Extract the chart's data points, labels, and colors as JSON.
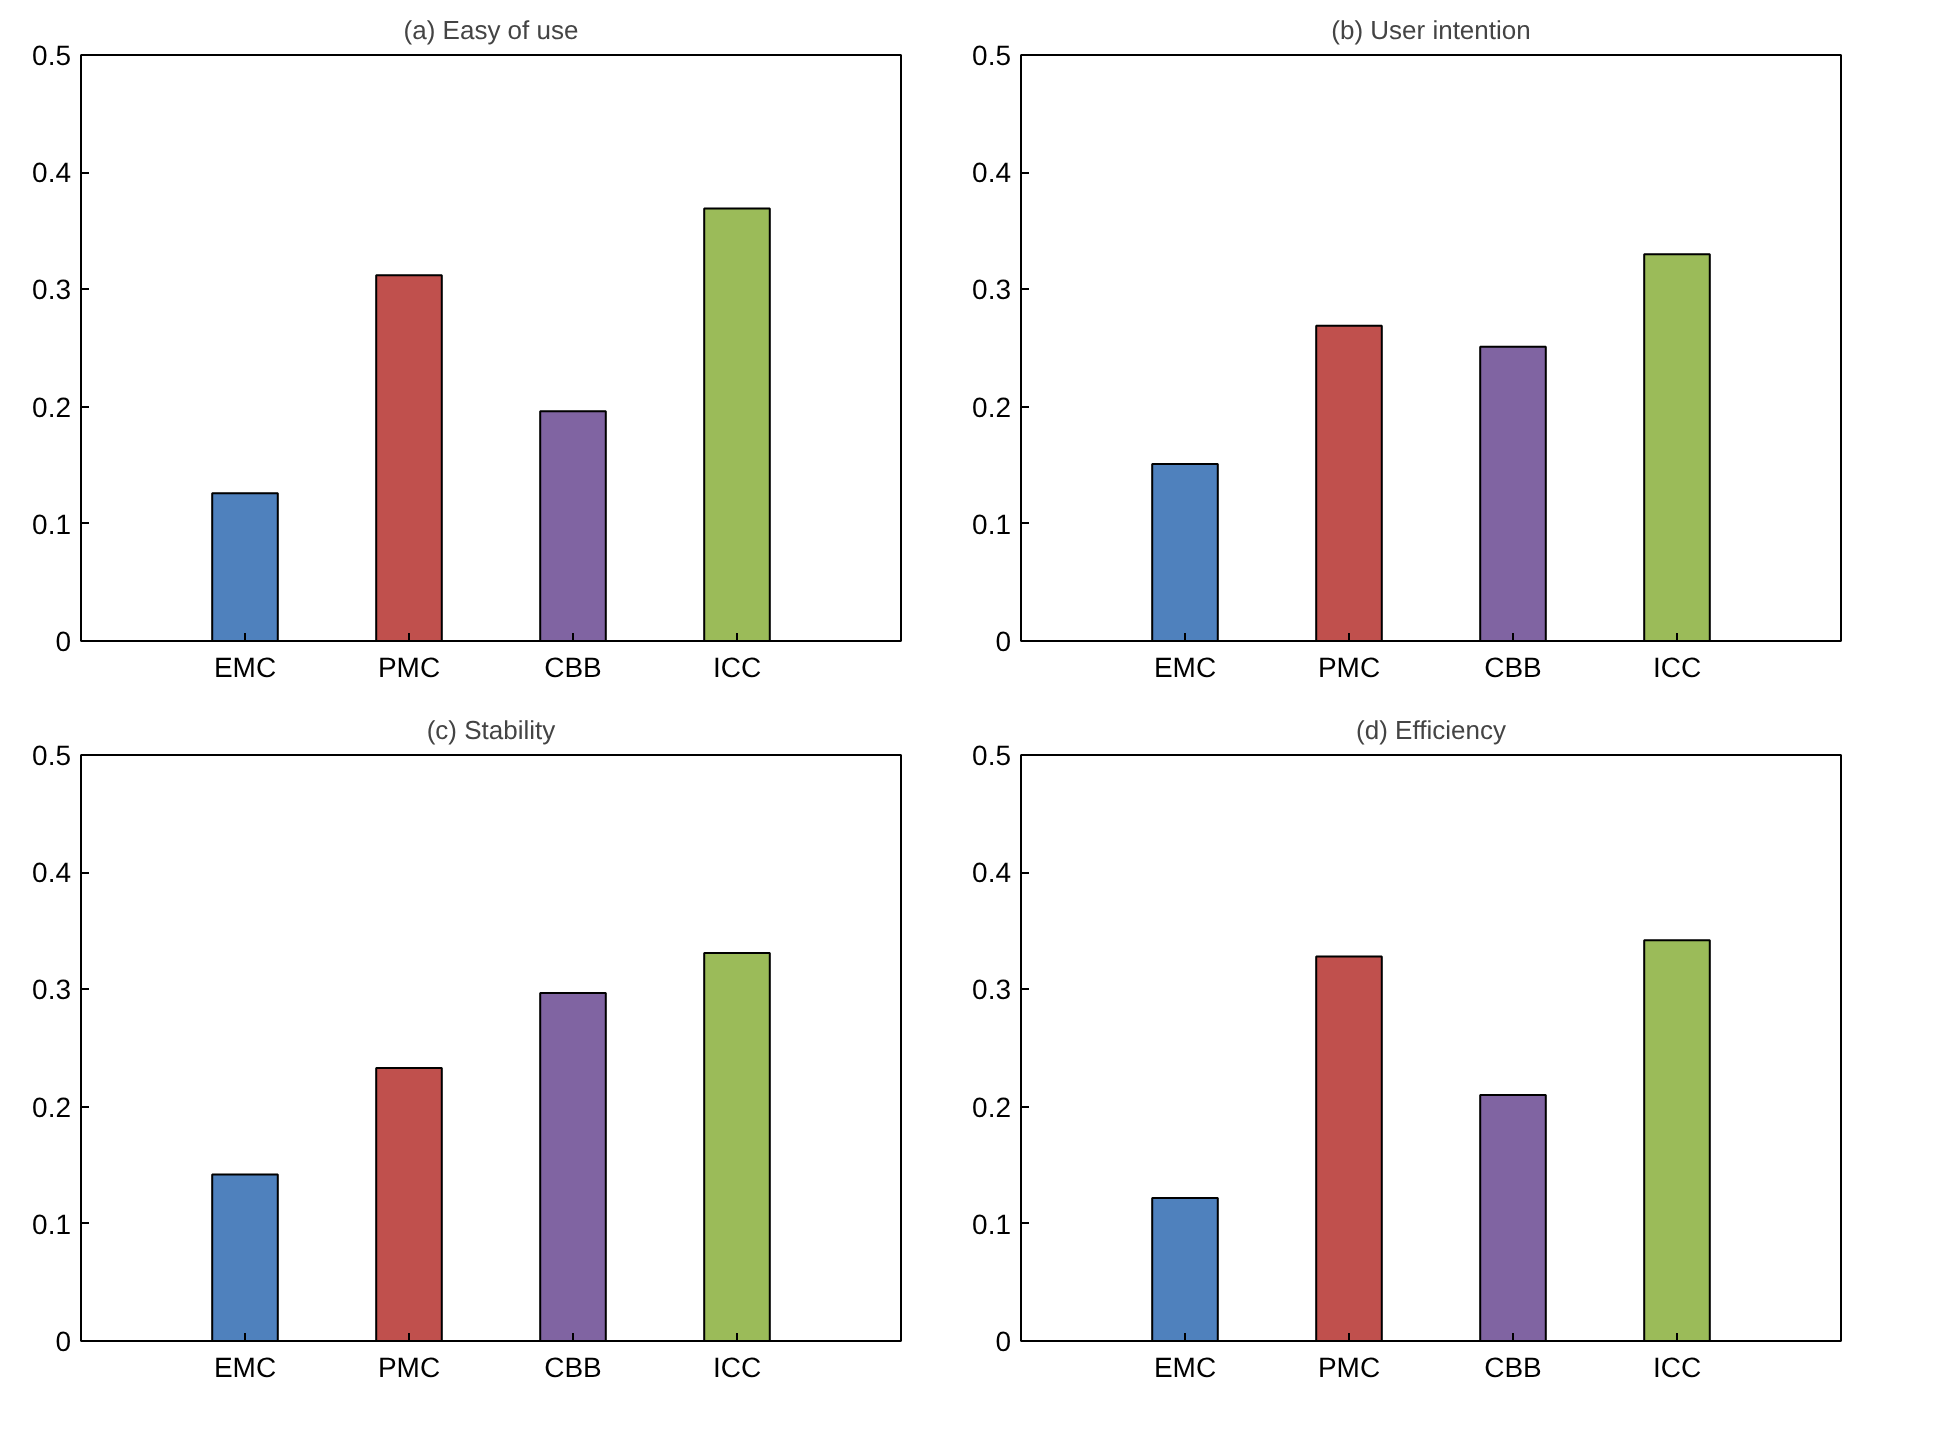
{
  "chart_data": [
    {
      "type": "bar",
      "title": "(a) Easy of use",
      "categories": [
        "EMC",
        "PMC",
        "CBB",
        "ICC"
      ],
      "values": [
        0.126,
        0.312,
        0.196,
        0.369
      ],
      "colors": [
        "#4f81bd",
        "#c0504d",
        "#8064a2",
        "#9bbb59"
      ],
      "ylim": [
        0,
        0.5
      ],
      "yticks": [
        0,
        0.1,
        0.2,
        0.3,
        0.4,
        0.5
      ]
    },
    {
      "type": "bar",
      "title": "(b) User intention",
      "categories": [
        "EMC",
        "PMC",
        "CBB",
        "ICC"
      ],
      "values": [
        0.151,
        0.269,
        0.251,
        0.33
      ],
      "colors": [
        "#4f81bd",
        "#c0504d",
        "#8064a2",
        "#9bbb59"
      ],
      "ylim": [
        0,
        0.5
      ],
      "yticks": [
        0,
        0.1,
        0.2,
        0.3,
        0.4,
        0.5
      ]
    },
    {
      "type": "bar",
      "title": "(c) Stability",
      "categories": [
        "EMC",
        "PMC",
        "CBB",
        "ICC"
      ],
      "values": [
        0.142,
        0.233,
        0.297,
        0.331
      ],
      "colors": [
        "#4f81bd",
        "#c0504d",
        "#8064a2",
        "#9bbb59"
      ],
      "ylim": [
        0,
        0.5
      ],
      "yticks": [
        0,
        0.1,
        0.2,
        0.3,
        0.4,
        0.5
      ]
    },
    {
      "type": "bar",
      "title": "(d) Efficiency",
      "categories": [
        "EMC",
        "PMC",
        "CBB",
        "ICC"
      ],
      "values": [
        0.122,
        0.328,
        0.21,
        0.342
      ],
      "colors": [
        "#4f81bd",
        "#c0504d",
        "#8064a2",
        "#9bbb59"
      ],
      "ylim": [
        0,
        0.5
      ],
      "yticks": [
        0,
        0.1,
        0.2,
        0.3,
        0.4,
        0.5
      ]
    }
  ]
}
